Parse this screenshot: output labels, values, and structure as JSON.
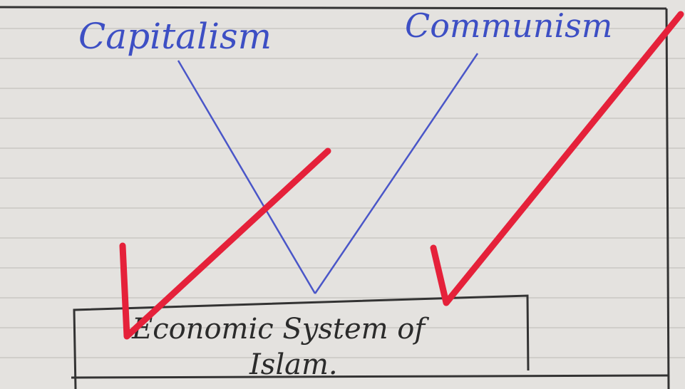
{
  "labels": {
    "left": "Capitalism",
    "right": "Communism",
    "box_line1": "Economic System of",
    "box_line2": "Islam."
  }
}
